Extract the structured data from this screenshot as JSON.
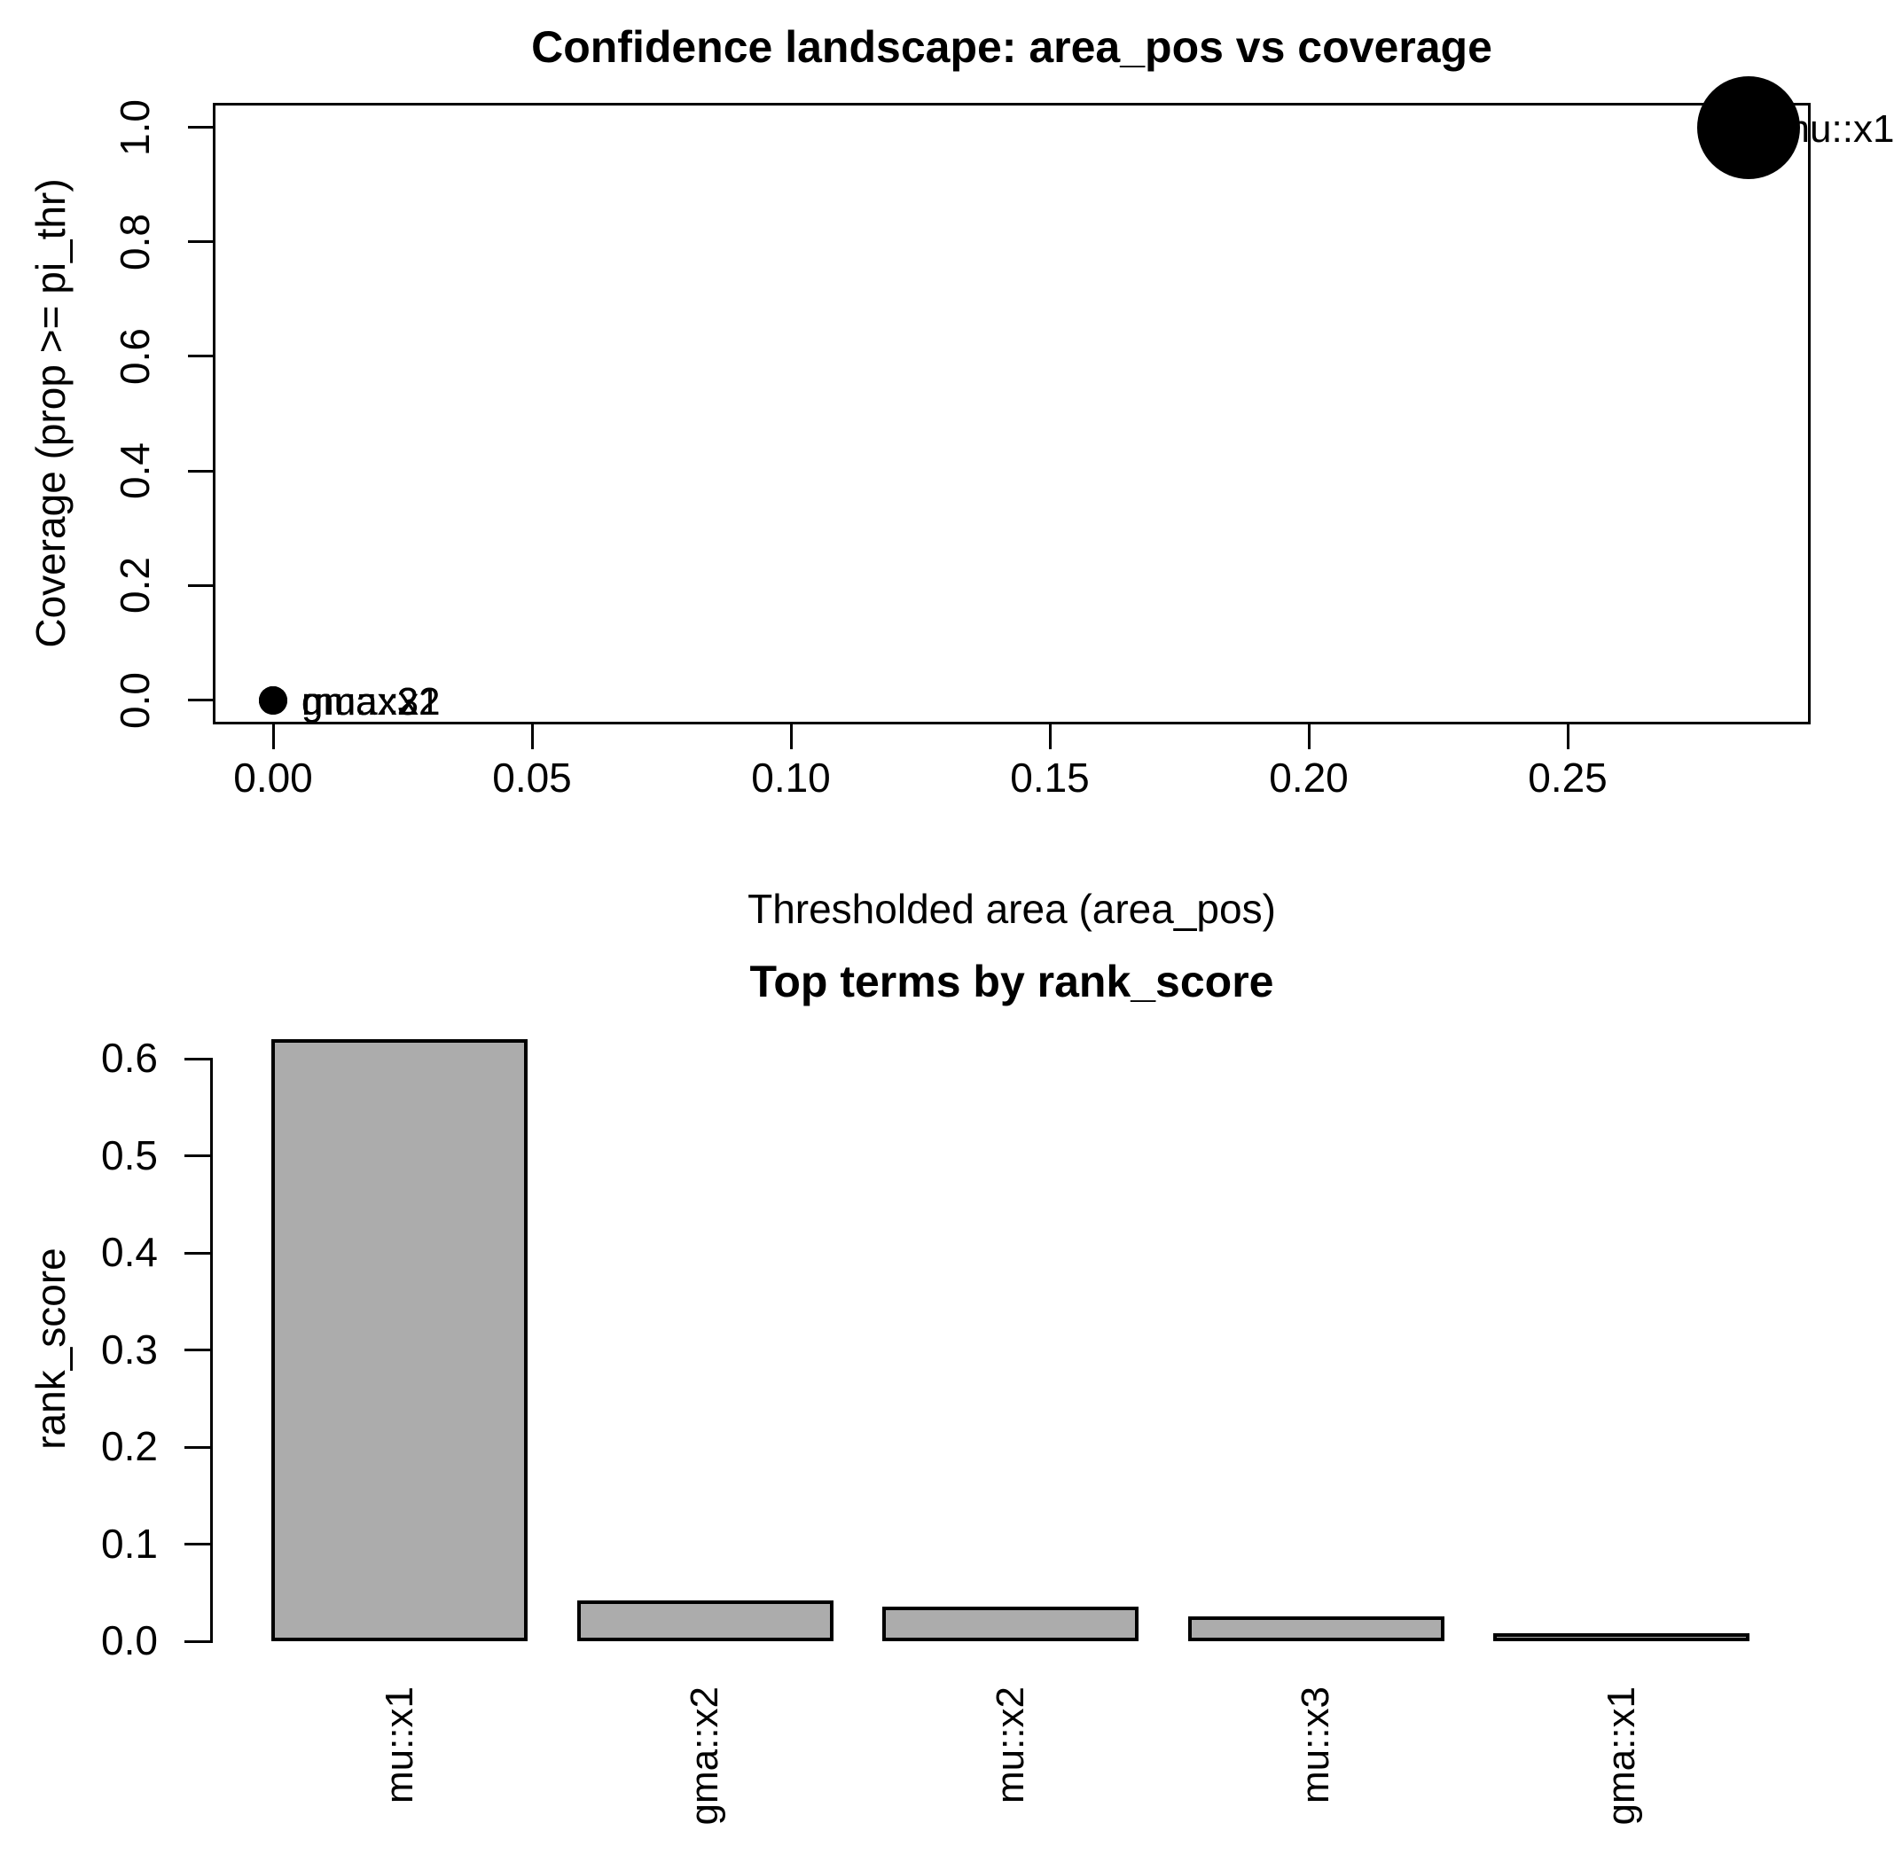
{
  "page": {
    "background": "#ffffff",
    "text_color": "#000000"
  },
  "scatter": {
    "title": "Confidence landscape: area_pos vs coverage",
    "xlabel": "Thresholded area (area_pos)",
    "ylabel": "Coverage (prop >= pi_thr)"
  },
  "bar": {
    "title": "Top terms by rank_score",
    "ylabel": "rank_score"
  },
  "chart_data": [
    {
      "type": "scatter",
      "title": "Confidence landscape: area_pos vs coverage",
      "xlabel": "Thresholded area (area_pos)",
      "ylabel": "Coverage (prop >= pi_thr)",
      "x_ticks": [
        0.0,
        0.05,
        0.1,
        0.15,
        0.2,
        0.25
      ],
      "x_tick_labels": [
        "0.00",
        "0.05",
        "0.10",
        "0.15",
        "0.20",
        "0.25"
      ],
      "y_ticks": [
        0.0,
        0.2,
        0.4,
        0.6,
        0.8,
        1.0
      ],
      "y_tick_labels": [
        "0.0",
        "0.2",
        "0.4",
        "0.6",
        "0.8",
        "1.0"
      ],
      "xlim": [
        -0.011,
        0.297
      ],
      "ylim": [
        -0.04,
        1.04
      ],
      "grid": false,
      "point_color": "#000000",
      "points": [
        {
          "label": "mu::x1",
          "x": 0.285,
          "y": 1.0,
          "radius_px": 58
        },
        {
          "label": "gma::x2",
          "x": 0.0,
          "y": 0.0,
          "radius_px": 16
        },
        {
          "label": "mu::x2",
          "x": 0.0,
          "y": 0.0,
          "radius_px": 16
        },
        {
          "label": "mu::x3",
          "x": 0.0,
          "y": 0.0,
          "radius_px": 16
        },
        {
          "label": "gma::x1",
          "x": 0.0,
          "y": 0.0,
          "radius_px": 16
        }
      ]
    },
    {
      "type": "bar",
      "title": "Top terms by rank_score",
      "xlabel": "",
      "ylabel": "rank_score",
      "categories": [
        "mu::x1",
        "gma::x2",
        "mu::x2",
        "mu::x3",
        "gma::x1"
      ],
      "values": [
        0.62,
        0.042,
        0.036,
        0.026,
        0.007
      ],
      "y_ticks": [
        0.0,
        0.1,
        0.2,
        0.3,
        0.4,
        0.5,
        0.6
      ],
      "y_tick_labels": [
        "0.0",
        "0.1",
        "0.2",
        "0.3",
        "0.4",
        "0.5",
        "0.6"
      ],
      "ylim": [
        0,
        0.62
      ],
      "grid": false,
      "legend": null,
      "bar_fill": "#acacac",
      "bar_border": "#000000"
    }
  ]
}
